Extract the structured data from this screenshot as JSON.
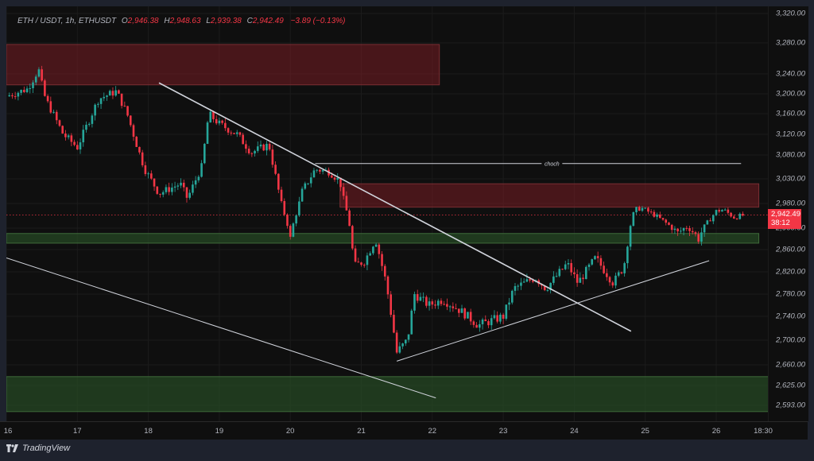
{
  "header": {
    "symbol": "ETH / USDT, 1h, ETHUSDT",
    "o_key": "O",
    "o_val": "2,946.38",
    "h_key": "H",
    "h_val": "2,948.63",
    "l_key": "L",
    "l_val": "2,939.38",
    "c_key": "C",
    "c_val": "2,942.49",
    "change": "−3.89 (−0.13%)"
  },
  "price_tag": {
    "price": "2,942.49",
    "countdown": "38:12"
  },
  "annotations": {
    "choch_label": "choch"
  },
  "brand": {
    "name": "TradingView"
  },
  "colors": {
    "up": "#26a69a",
    "down": "#f23645",
    "supply_zone": "rgba(120,30,36,0.55)",
    "supply_border": "#7a2e33",
    "demand_zone": "rgba(40,80,38,0.65)",
    "demand_border": "#3f6b3a",
    "lines": "#d1d4dc"
  },
  "chart_data": {
    "type": "candlestick",
    "title": "ETH / USDT, 1h, ETHUSDT",
    "xlabel": "",
    "ylabel": "",
    "x_ticks": [
      "16",
      "17",
      "18",
      "19",
      "20",
      "21",
      "22",
      "23",
      "24",
      "25",
      "26",
      "18:30"
    ],
    "y_ticks": [
      "3,320.00",
      "3,280.00",
      "3,240.00",
      "3,200.00",
      "3,160.00",
      "3,120.00",
      "3,080.00",
      "3,030.00",
      "2,980.00",
      "2,900.00",
      "2,860.00",
      "2,820.00",
      "2,780.00",
      "2,740.00",
      "2,700.00",
      "2,660.00",
      "2,625.00",
      "2,593.00"
    ],
    "ylim": [
      2580,
      3330
    ],
    "grid": true,
    "last_price": 2942.49,
    "ohlc_last": {
      "open": 2946.38,
      "high": 2948.63,
      "low": 2939.38,
      "close": 2942.49,
      "change": -3.89,
      "change_pct": -0.13
    },
    "zones": [
      {
        "type": "supply",
        "from_day": 16.0,
        "to_day": 22.1,
        "top": 3278,
        "bottom": 3218
      },
      {
        "type": "supply",
        "from_day": 20.7,
        "to_day": 26.6,
        "top": 3020,
        "bottom": 2968
      },
      {
        "type": "demand",
        "from_day": 16.0,
        "to_day": 26.6,
        "top": 2890,
        "bottom": 2872
      },
      {
        "type": "demand",
        "from_day": 16.0,
        "to_day": 26.8,
        "top": 2640,
        "bottom": 2583
      }
    ],
    "trendlines": [
      {
        "name": "descending-resistance",
        "from": [
          18.15,
          3222
        ],
        "to": [
          24.8,
          2715
        ]
      },
      {
        "name": "descending-channel-lower",
        "from": [
          16.0,
          2845
        ],
        "to": [
          22.05,
          2605
        ]
      },
      {
        "name": "ascending-support",
        "from": [
          21.5,
          2666
        ],
        "to": [
          25.9,
          2840
        ]
      },
      {
        "name": "choch",
        "from": [
          20.35,
          3062
        ],
        "to": [
          26.35,
          3062
        ],
        "label": "choch"
      }
    ],
    "price_path_keypoints": [
      [
        16.0,
        3195
      ],
      [
        16.3,
        3210
      ],
      [
        16.45,
        3248
      ],
      [
        16.55,
        3190
      ],
      [
        16.8,
        3120
      ],
      [
        17.0,
        3095
      ],
      [
        17.3,
        3190
      ],
      [
        17.55,
        3205
      ],
      [
        17.7,
        3160
      ],
      [
        17.95,
        3050
      ],
      [
        18.15,
        3000
      ],
      [
        18.45,
        3020
      ],
      [
        18.55,
        2990
      ],
      [
        18.75,
        3055
      ],
      [
        18.85,
        3160
      ],
      [
        19.0,
        3140
      ],
      [
        19.25,
        3120
      ],
      [
        19.45,
        3085
      ],
      [
        19.7,
        3100
      ],
      [
        19.9,
        2960
      ],
      [
        20.0,
        2880
      ],
      [
        20.15,
        3000
      ],
      [
        20.35,
        3050
      ],
      [
        20.55,
        3045
      ],
      [
        20.7,
        3025
      ],
      [
        20.8,
        2950
      ],
      [
        20.9,
        2830
      ],
      [
        21.05,
        2840
      ],
      [
        21.2,
        2880
      ],
      [
        21.35,
        2800
      ],
      [
        21.5,
        2680
      ],
      [
        21.65,
        2700
      ],
      [
        21.75,
        2780
      ],
      [
        21.95,
        2760
      ],
      [
        22.15,
        2770
      ],
      [
        22.4,
        2750
      ],
      [
        22.65,
        2725
      ],
      [
        23.0,
        2740
      ],
      [
        23.15,
        2790
      ],
      [
        23.45,
        2810
      ],
      [
        23.6,
        2790
      ],
      [
        23.9,
        2835
      ],
      [
        24.05,
        2800
      ],
      [
        24.3,
        2845
      ],
      [
        24.55,
        2800
      ],
      [
        24.7,
        2830
      ],
      [
        24.85,
        2960
      ],
      [
        24.95,
        2965
      ],
      [
        25.15,
        2940
      ],
      [
        25.45,
        2890
      ],
      [
        25.6,
        2905
      ],
      [
        25.75,
        2880
      ],
      [
        26.0,
        2955
      ],
      [
        26.1,
        2960
      ],
      [
        26.25,
        2935
      ],
      [
        26.4,
        2942.49
      ]
    ]
  }
}
